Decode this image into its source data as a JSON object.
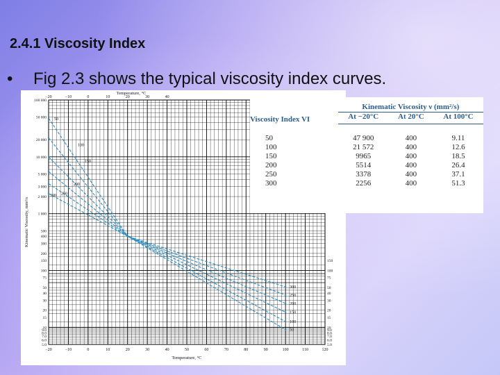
{
  "slide": {
    "title": "2.4.1 Viscosity Index",
    "bullet": "•",
    "text": "Fig 2.3 shows the typical viscosity index curves."
  },
  "figure": {
    "top_axis_label": "Temperature, °C",
    "bottom_axis_label": "Temperature, °C",
    "y_axis_label": "Kinematic Viscosity, mm²/s",
    "top_ticks": [
      "−20",
      "−10",
      "0",
      "10",
      "20",
      "30",
      "40"
    ],
    "bottom_ticks": [
      "−20",
      "−10",
      "0",
      "10",
      "20",
      "30",
      "40",
      "50",
      "60",
      "70",
      "80",
      "90",
      "100",
      "110",
      "120"
    ],
    "left_ticks": [
      "100 000",
      "50 000",
      "20 000",
      "10 000",
      "5 000",
      "3 000",
      "2 000",
      "1 000",
      "500",
      "400",
      "300",
      "200",
      "150",
      "100",
      "75",
      "50",
      "40",
      "30",
      "20",
      "15",
      "10",
      "9.0",
      "8.0",
      "7.0",
      "6.0",
      "5.0"
    ],
    "right_ticks": [
      "150",
      "100",
      "75",
      "50",
      "40",
      "30",
      "20",
      "15",
      "10",
      "9.0",
      "8.0",
      "7.0",
      "6.0",
      "5.0"
    ],
    "curve_labels_left": [
      "50",
      "100",
      "150",
      "300",
      "250",
      "200"
    ],
    "curve_labels_right": [
      "300",
      "250",
      "200",
      "150",
      "100",
      "50"
    ],
    "curve_color": "#2a8cc4"
  },
  "table": {
    "head_vi": "Viscosity Index VI",
    "head_kv": "Kinematic Viscosity ν (mm²/s)",
    "sub": [
      "At −20°C",
      "At 20°C",
      "At 100°C"
    ],
    "rows": [
      [
        "50",
        "47 900",
        "400",
        "9.11"
      ],
      [
        "100",
        "21 572",
        "400",
        "12.6"
      ],
      [
        "150",
        "9965",
        "400",
        "18.5"
      ],
      [
        "200",
        "5514",
        "400",
        "26.4"
      ],
      [
        "250",
        "3378",
        "400",
        "37.1"
      ],
      [
        "300",
        "2256",
        "400",
        "51.3"
      ]
    ]
  },
  "chart_data": {
    "type": "line",
    "xlabel": "Temperature, °C",
    "ylabel": "Kinematic Viscosity, mm²/s",
    "x": [
      -20,
      20,
      100
    ],
    "series": [
      {
        "name": "50",
        "values": [
          47900,
          400,
          9.11
        ]
      },
      {
        "name": "100",
        "values": [
          21572,
          400,
          12.6
        ]
      },
      {
        "name": "150",
        "values": [
          9965,
          400,
          18.5
        ]
      },
      {
        "name": "200",
        "values": [
          5514,
          400,
          26.4
        ]
      },
      {
        "name": "250",
        "values": [
          3378,
          400,
          37.1
        ]
      },
      {
        "name": "300",
        "values": [
          2256,
          400,
          51.3
        ]
      }
    ],
    "xlim": [
      -20,
      120
    ],
    "ylim": [
      5,
      100000
    ],
    "yscale": "log",
    "grid": true
  }
}
